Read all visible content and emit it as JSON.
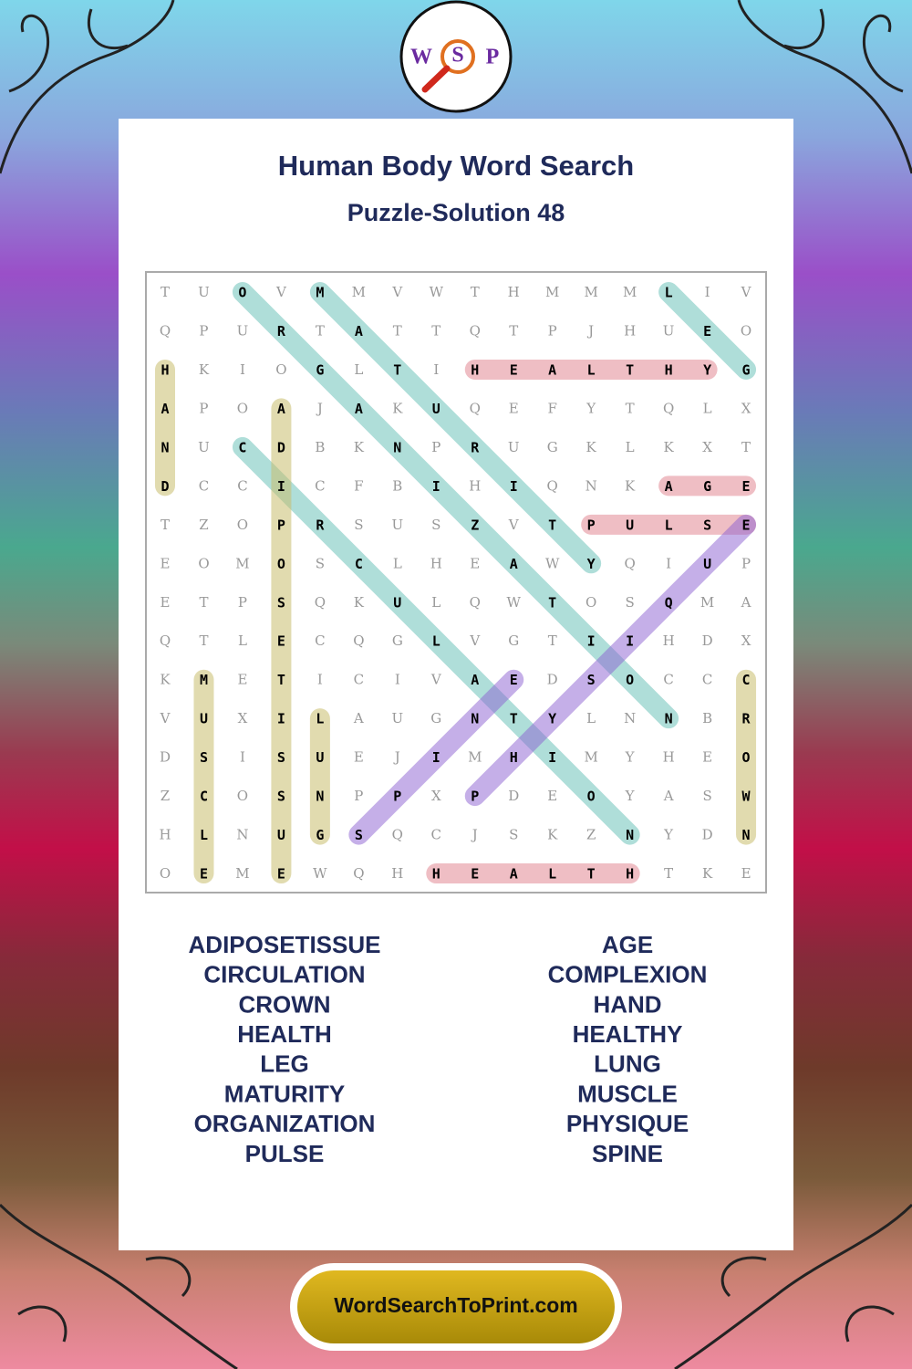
{
  "logo": {
    "letters": [
      "W",
      "S",
      "P"
    ]
  },
  "header": {
    "title": "Human Body Word Search",
    "subtitle": "Puzzle-Solution 48"
  },
  "grid": [
    [
      "T",
      "U",
      "O",
      "V",
      "M",
      "M",
      "V",
      "W",
      "T",
      "H",
      "M",
      "M",
      "M",
      "L",
      "I",
      "V"
    ],
    [
      "Q",
      "P",
      "U",
      "R",
      "T",
      "A",
      "T",
      "T",
      "Q",
      "T",
      "P",
      "J",
      "H",
      "U",
      "E",
      "O"
    ],
    [
      "H",
      "K",
      "I",
      "O",
      "G",
      "L",
      "T",
      "I",
      "H",
      "E",
      "A",
      "L",
      "T",
      "H",
      "Y",
      "G"
    ],
    [
      "A",
      "P",
      "O",
      "A",
      "J",
      "A",
      "K",
      "U",
      "Q",
      "E",
      "F",
      "Y",
      "T",
      "Q",
      "L",
      "X"
    ],
    [
      "N",
      "U",
      "C",
      "D",
      "B",
      "K",
      "N",
      "P",
      "R",
      "U",
      "G",
      "K",
      "L",
      "K",
      "X",
      "T"
    ],
    [
      "D",
      "C",
      "C",
      "I",
      "C",
      "F",
      "B",
      "I",
      "H",
      "I",
      "Q",
      "N",
      "K",
      "A",
      "G",
      "E"
    ],
    [
      "T",
      "Z",
      "O",
      "P",
      "R",
      "S",
      "U",
      "S",
      "Z",
      "V",
      "T",
      "P",
      "U",
      "L",
      "S",
      "E"
    ],
    [
      "E",
      "O",
      "M",
      "O",
      "S",
      "C",
      "L",
      "H",
      "E",
      "A",
      "W",
      "Y",
      "Q",
      "I",
      "U",
      "P"
    ],
    [
      "E",
      "T",
      "P",
      "S",
      "Q",
      "K",
      "U",
      "L",
      "Q",
      "W",
      "T",
      "O",
      "S",
      "Q",
      "M",
      "A"
    ],
    [
      "Q",
      "T",
      "L",
      "E",
      "C",
      "Q",
      "G",
      "L",
      "V",
      "G",
      "T",
      "I",
      "I",
      "H",
      "D",
      "X"
    ],
    [
      "K",
      "M",
      "E",
      "T",
      "I",
      "C",
      "I",
      "V",
      "A",
      "E",
      "D",
      "S",
      "O",
      "C",
      "C",
      "C"
    ],
    [
      "V",
      "U",
      "X",
      "I",
      "L",
      "A",
      "U",
      "G",
      "N",
      "T",
      "Y",
      "L",
      "N",
      "N",
      "B",
      "R"
    ],
    [
      "D",
      "S",
      "I",
      "S",
      "U",
      "E",
      "J",
      "I",
      "M",
      "H",
      "I",
      "M",
      "Y",
      "H",
      "E",
      "O"
    ],
    [
      "Z",
      "C",
      "O",
      "S",
      "N",
      "P",
      "P",
      "X",
      "P",
      "D",
      "E",
      "O",
      "Y",
      "A",
      "S",
      "W"
    ],
    [
      "H",
      "L",
      "N",
      "U",
      "G",
      "S",
      "Q",
      "C",
      "J",
      "S",
      "K",
      "Z",
      "N",
      "Y",
      "D",
      "N"
    ],
    [
      "O",
      "E",
      "M",
      "E",
      "W",
      "Q",
      "H",
      "H",
      "E",
      "A",
      "L",
      "T",
      "H",
      "T",
      "K",
      "E"
    ]
  ],
  "words": {
    "left": [
      "ADIPOSETISSUE",
      "CIRCULATION",
      "CROWN",
      "HEALTH",
      "LEG",
      "MATURITY",
      "ORGANIZATION",
      "PULSE"
    ],
    "right": [
      "AGE",
      "COMPLEXION",
      "HAND",
      "HEALTHY",
      "LUNG",
      "MUSCLE",
      "PHYSIQUE",
      "SPINE"
    ]
  },
  "footer": {
    "link": "WordSearchToPrint.com"
  }
}
